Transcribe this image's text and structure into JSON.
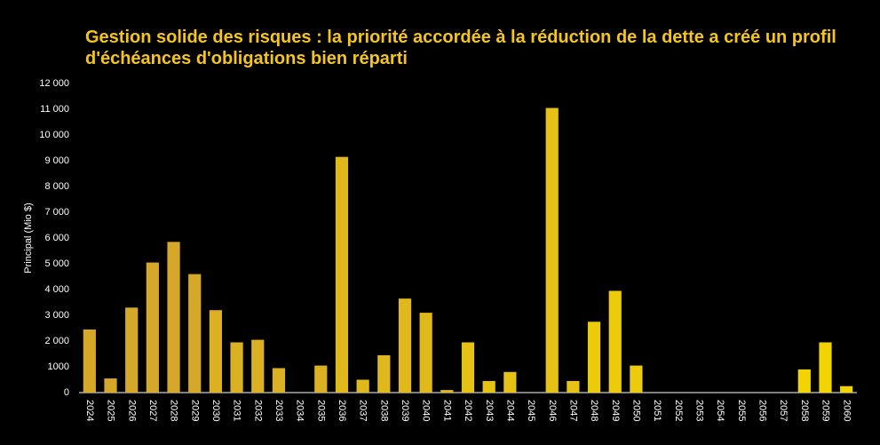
{
  "chart_data": {
    "type": "bar",
    "title": "Gestion solide des risques : la priorité accordée à la réduction de la dette a créé un profil d'échéances d'obligations bien réparti",
    "y_label": "Principal (Mio $)",
    "categories": [
      "2024",
      "2025",
      "2026",
      "2027",
      "2028",
      "2029",
      "2030",
      "2031",
      "2032",
      "2033",
      "2034",
      "2035",
      "2036",
      "2037",
      "2038",
      "2039",
      "2040",
      "2041",
      "2042",
      "2043",
      "2044",
      "2045",
      "2046",
      "2047",
      "2048",
      "2049",
      "2050",
      "2051",
      "2052",
      "2053",
      "2054",
      "2055",
      "2056",
      "2057",
      "2058",
      "2059",
      "2060"
    ],
    "values": [
      2450,
      550,
      3300,
      5050,
      5850,
      4600,
      3200,
      1950,
      2050,
      950,
      0,
      1050,
      9150,
      500,
      1450,
      3650,
      3100,
      100,
      1950,
      450,
      800,
      0,
      11050,
      450,
      2750,
      3950,
      1050,
      0,
      0,
      0,
      0,
      0,
      0,
      0,
      900,
      1950,
      250
    ],
    "colors": [
      "#d6a82a",
      "#d6a82a",
      "#d6a82a",
      "#d6a82a",
      "#d6a82a",
      "#d6a82a",
      "#dbb022",
      "#dbb022",
      "#dbb022",
      "#dbb022",
      "#dbb022",
      "#dbb022",
      "#e0b81c",
      "#e0b81c",
      "#e0b81c",
      "#e0b81c",
      "#e0b81c",
      "#e0b81c",
      "#e6c214",
      "#e6c214",
      "#e6c214",
      "#e6c214",
      "#e6c214",
      "#e6c214",
      "#ecca0c",
      "#ecca0c",
      "#ecca0c",
      "#ecca0c",
      "#ecca0c",
      "#ecca0c",
      "#f2d404",
      "#f2d404",
      "#f2d404",
      "#f2d404",
      "#f2d404",
      "#f2d404",
      "#f2d404"
    ],
    "ylim": [
      0,
      12000
    ],
    "yticks": [
      0,
      1000,
      {
        "value": 2000,
        "label": "2 000"
      },
      {
        "value": 3000,
        "label": "3 000"
      },
      {
        "value": 4000,
        "label": "4 000"
      },
      {
        "value": 5000,
        "label": "5 000"
      },
      {
        "value": 6000,
        "label": "6 000"
      },
      {
        "value": 7000,
        "label": "7 000"
      },
      {
        "value": 8000,
        "label": "8 000"
      },
      {
        "value": 9000,
        "label": "9 000"
      },
      {
        "value": 10000,
        "label": "10 000"
      },
      {
        "value": 11000,
        "label": "11 000"
      },
      {
        "value": 12000,
        "label": "12 000"
      }
    ],
    "grid": false
  }
}
